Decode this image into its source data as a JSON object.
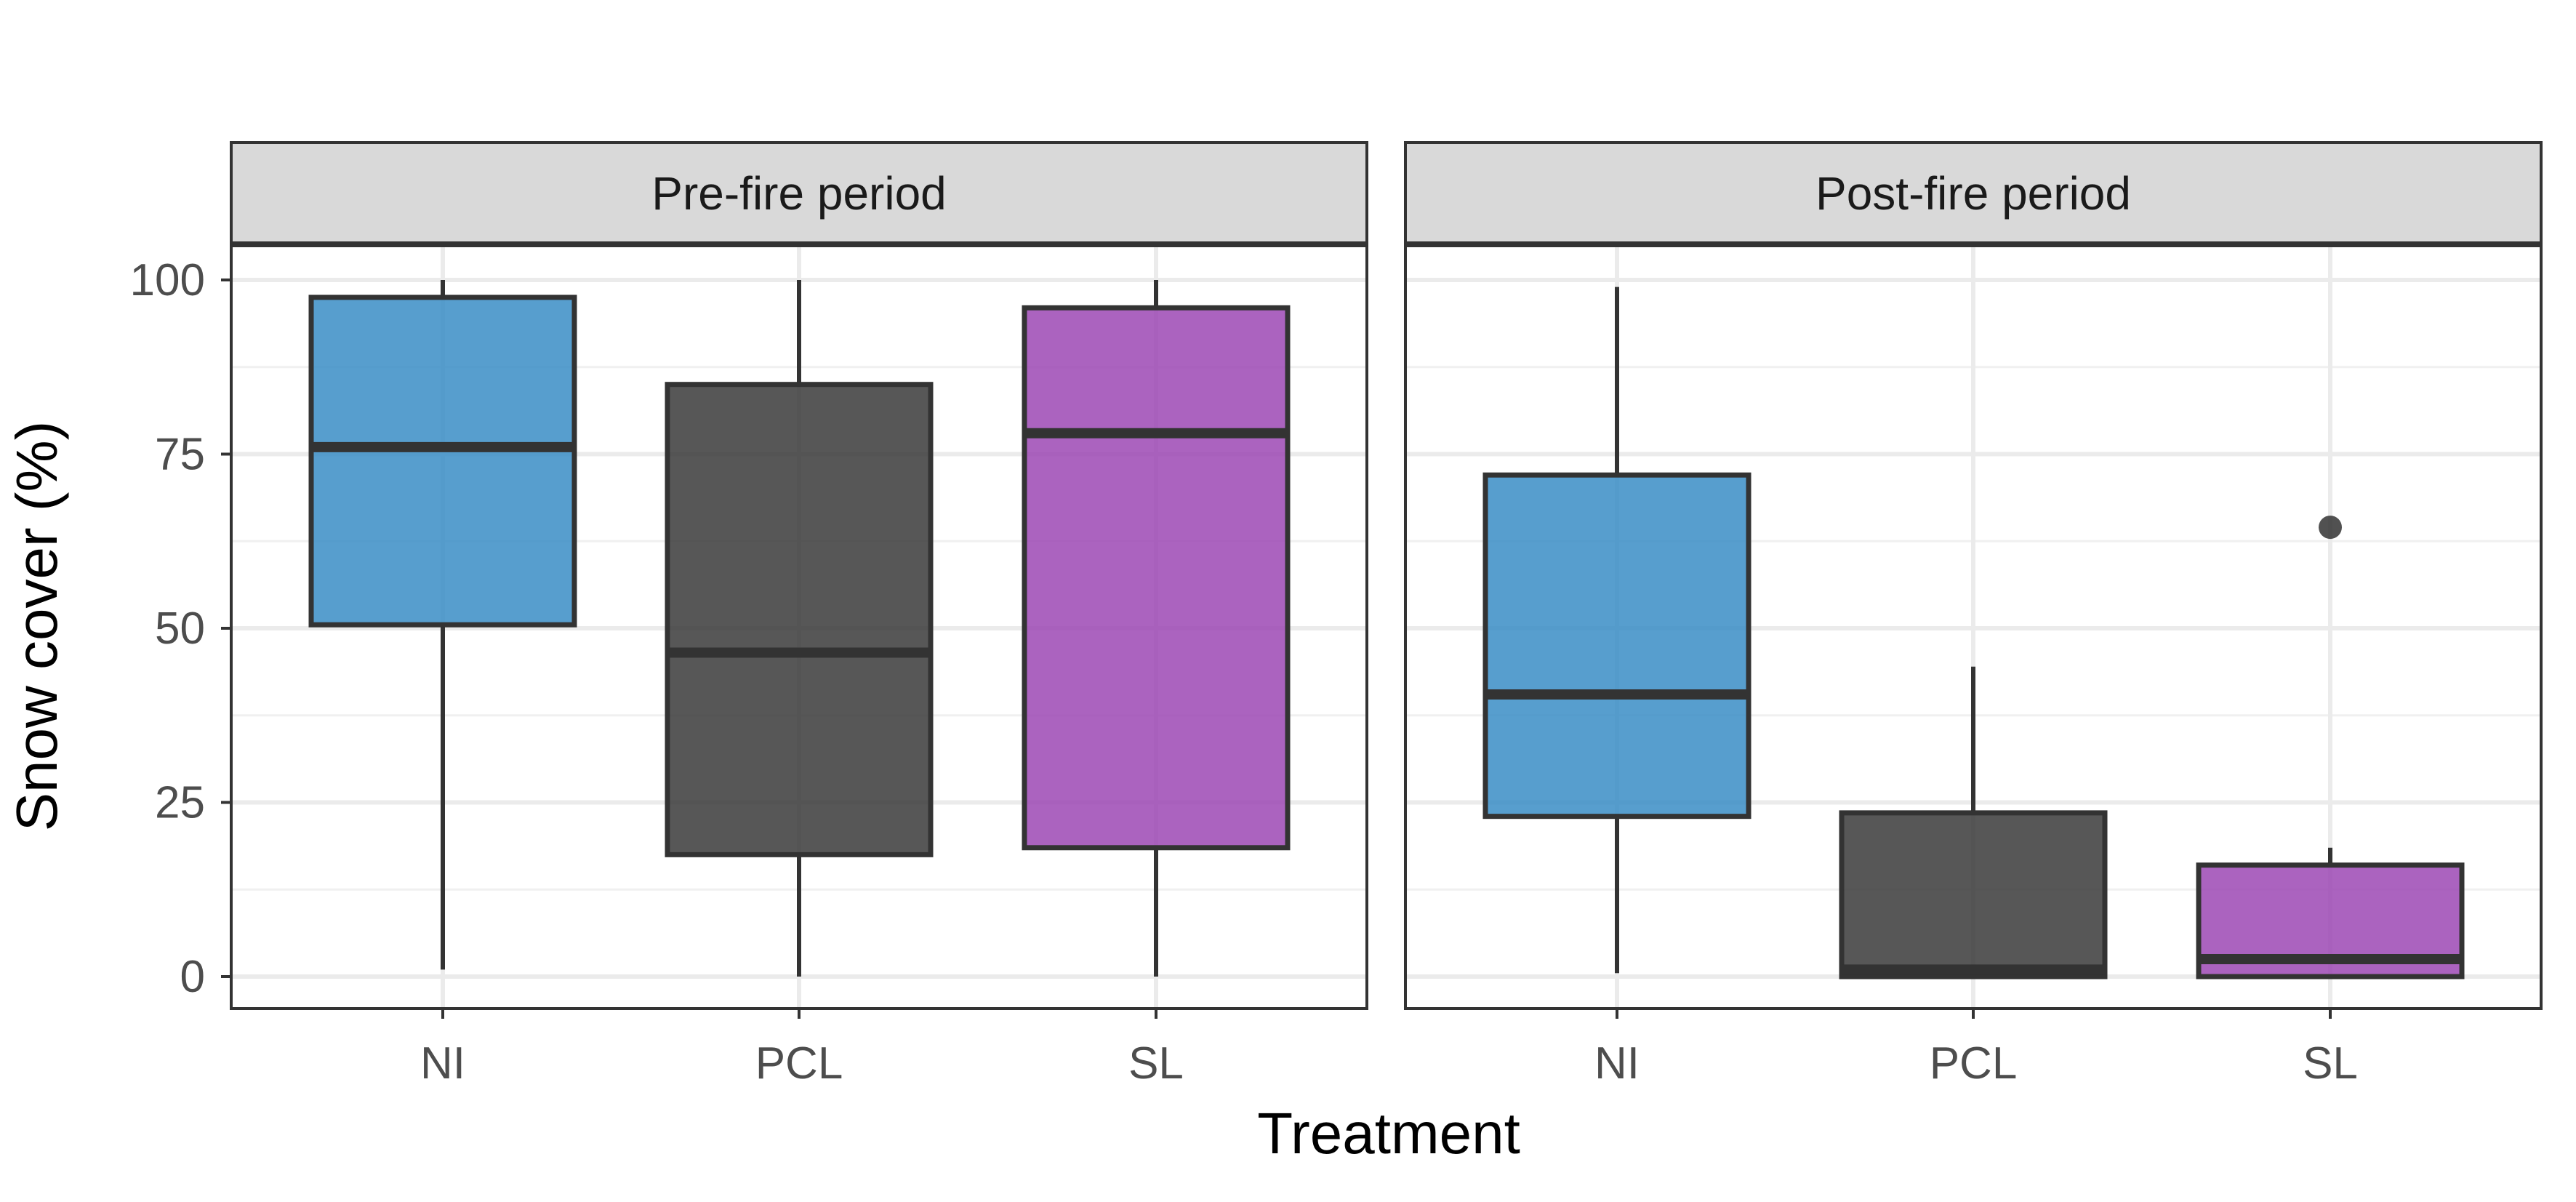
{
  "chart_data": {
    "type": "boxplot",
    "ylabel": "Snow cover (%)",
    "xlabel": "Treatment",
    "ylim": [
      -4.5,
      105
    ],
    "yticks": [
      0,
      25,
      50,
      75,
      100
    ],
    "categories": [
      "NI",
      "PCL",
      "SL"
    ],
    "colors": {
      "NI": "#3a8dc5",
      "PCL": "#3a3a3a",
      "SL": "#9c48b4"
    },
    "grid": true,
    "facets": [
      {
        "label": "Pre-fire period",
        "boxes": [
          {
            "category": "NI",
            "min": 1,
            "q1": 50.5,
            "median": 76,
            "q3": 97.5,
            "max": 100,
            "outliers": []
          },
          {
            "category": "PCL",
            "min": 0,
            "q1": 17.5,
            "median": 46.5,
            "q3": 85,
            "max": 100,
            "outliers": []
          },
          {
            "category": "SL",
            "min": 0,
            "q1": 18.5,
            "median": 78,
            "q3": 96,
            "max": 100,
            "outliers": []
          }
        ]
      },
      {
        "label": "Post-fire period",
        "boxes": [
          {
            "category": "NI",
            "min": 0.5,
            "q1": 23,
            "median": 40.5,
            "q3": 72,
            "max": 99,
            "outliers": []
          },
          {
            "category": "PCL",
            "min": 0,
            "q1": 0,
            "median": 1,
            "q3": 23.5,
            "max": 44.5,
            "outliers": []
          },
          {
            "category": "SL",
            "min": 0,
            "q1": 0,
            "median": 2.5,
            "q3": 16,
            "max": 18.5,
            "outliers": [
              64.5
            ]
          }
        ]
      }
    ]
  }
}
